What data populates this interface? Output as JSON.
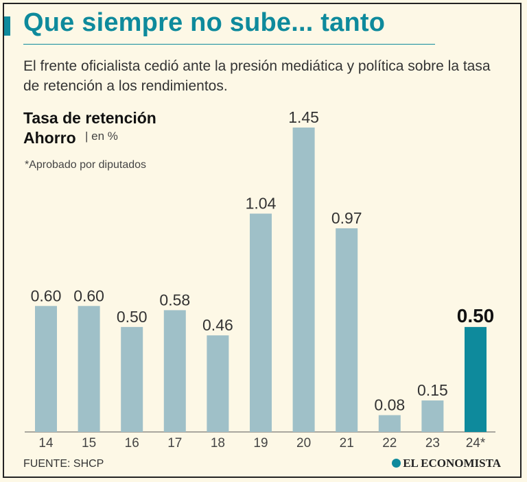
{
  "title": "Que siempre no sube... tanto",
  "subtitle": "El frente oficialista cedió ante la presión mediática y política sobre la tasa de retención a los rendimientos.",
  "metric_line1": "Tasa de retención",
  "metric_line2": "Ahorro",
  "unit": "| en %",
  "note": "*Aprobado por diputados",
  "source": "FUENTE: SHCP",
  "brand": "EL ECONOMISTA",
  "colors": {
    "bar": "#9fc0c8",
    "highlight": "#0e8a9c",
    "title": "#0e8a9c"
  },
  "chart_data": {
    "type": "bar",
    "title": "Tasa de retención Ahorro",
    "ylabel": "en %",
    "xlabel": "",
    "categories": [
      "14",
      "15",
      "16",
      "17",
      "18",
      "19",
      "20",
      "21",
      "22",
      "23",
      "24*"
    ],
    "values": [
      0.6,
      0.6,
      0.5,
      0.58,
      0.46,
      1.04,
      1.45,
      0.97,
      0.08,
      0.15,
      0.5
    ],
    "value_labels": [
      "0.60",
      "0.60",
      "0.50",
      "0.58",
      "0.46",
      "1.04",
      "1.45",
      "0.97",
      "0.08",
      "0.15",
      "0.50"
    ],
    "highlight_index": 10,
    "ylim": [
      0,
      1.45
    ],
    "grid": false
  }
}
